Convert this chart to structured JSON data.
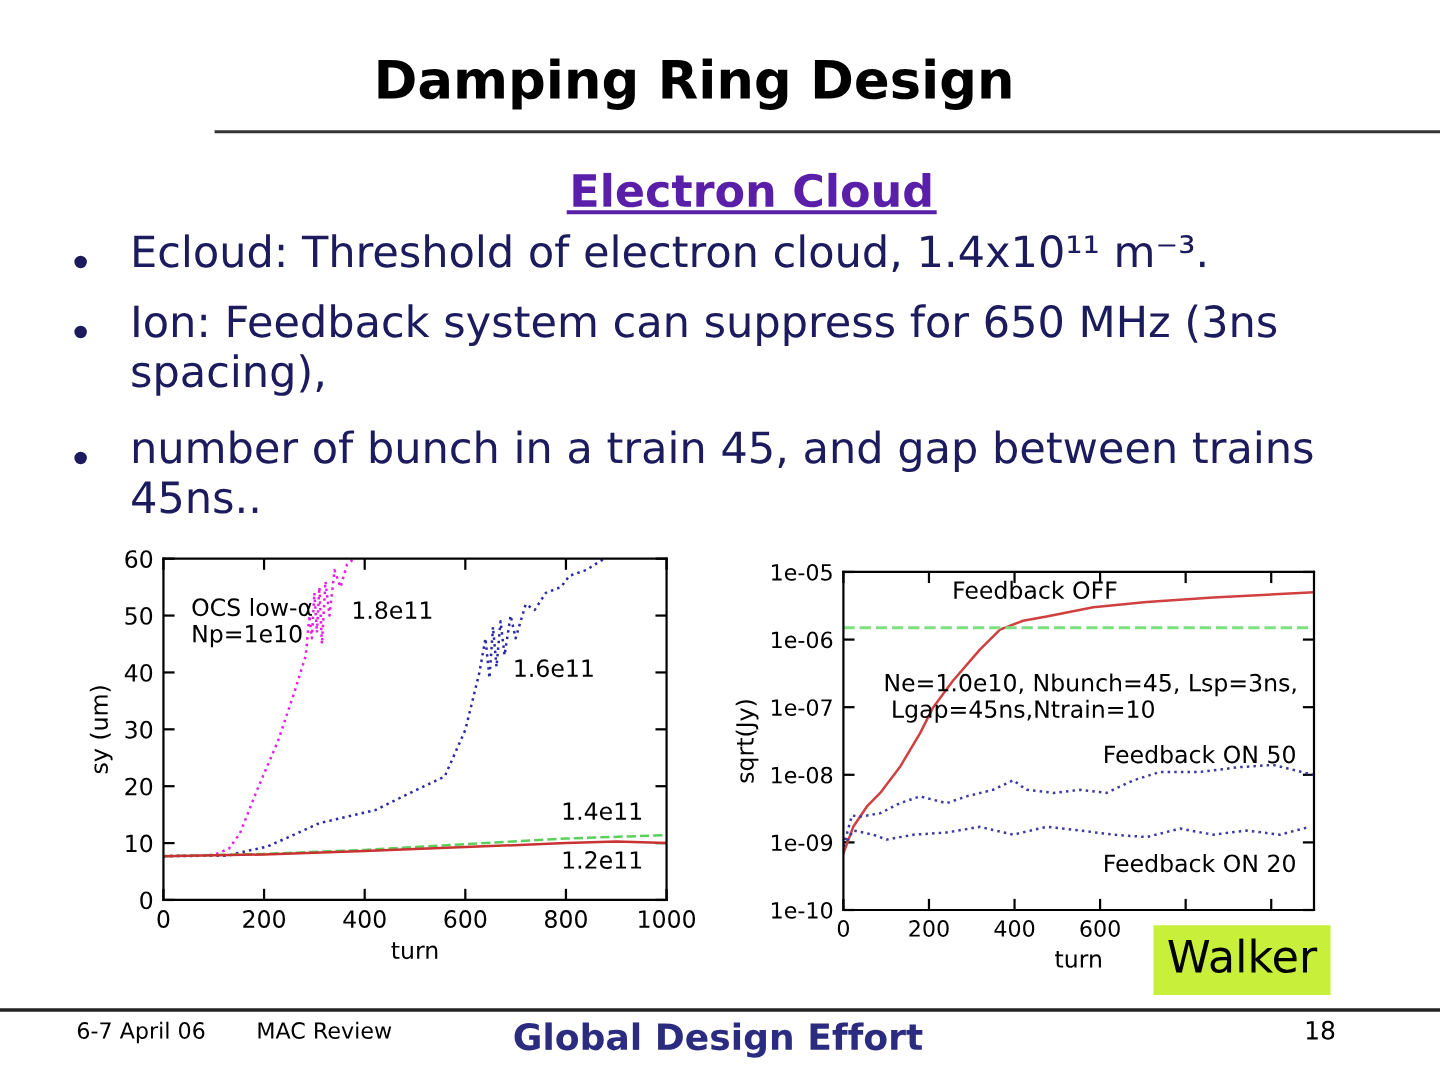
{
  "chart_data": [
    {
      "type": "other",
      "title": "Damping Ring Design",
      "subtitle": "Electron Cloud",
      "annotations": [
        "Ecloud: Threshold of electron cloud, 1.4x10¹¹ m⁻³.",
        "Ion: Feedback system can suppress for 650 MHz (3ns spacing),",
        "number of bunch in a train 45, and gap between trains 45ns..",
        "6-7 April 06",
        "MAC Review",
        "Global Design Effort",
        "18",
        "Walker"
      ]
    },
    {
      "type": "line",
      "xlabel": "turn",
      "ylabel": "sy (um)",
      "xlim": [
        0,
        1000
      ],
      "ylim": [
        0,
        60
      ],
      "xticks": [
        0,
        200,
        400,
        600,
        800,
        1000
      ],
      "yticks": [
        0,
        10,
        20,
        30,
        40,
        50,
        60
      ],
      "annotations": [
        "OCS low-α\nNp=1e10"
      ],
      "series": [
        {
          "name": "1.8e11",
          "color": "#e81ee8",
          "line_style": "dotted",
          "x": [
            0,
            100,
            130,
            152,
            186,
            228,
            262,
            283,
            290,
            295,
            300,
            305,
            310,
            315,
            322,
            330,
            340,
            352,
            365,
            379
          ],
          "values": [
            7.7,
            7.9,
            9,
            11.7,
            19.3,
            28,
            37,
            43,
            50,
            46,
            54,
            47,
            55,
            45,
            56,
            50,
            58,
            55,
            59,
            60
          ]
        },
        {
          "name": "1.6e11",
          "color": "#2a2aa8",
          "line_style": "dotted",
          "x": [
            0,
            130,
            145,
            207,
            260,
            310,
            421,
            490,
            559,
            600,
            628,
            640,
            648,
            655,
            662,
            670,
            678,
            690,
            700,
            720,
            738,
            760,
            790,
            807,
            840,
            876
          ],
          "values": [
            7.7,
            7.8,
            8.2,
            9.4,
            11.5,
            13.5,
            15.8,
            18.8,
            21.7,
            29.9,
            40,
            46,
            39,
            48,
            41,
            49,
            43,
            50,
            46,
            52,
            51,
            54,
            55,
            57,
            58,
            60
          ]
        },
        {
          "name": "1.4e11",
          "color": "#5ccf5c",
          "line_style": "dashed",
          "x": [
            0,
            200,
            400,
            600,
            800,
            1000
          ],
          "values": [
            7.7,
            8.1,
            8.8,
            9.8,
            10.8,
            11.4
          ]
        },
        {
          "name": "1.2e11",
          "color": "#c83232",
          "line_style": "solid",
          "x": [
            0,
            200,
            400,
            600,
            800,
            900,
            1000
          ],
          "values": [
            7.7,
            8.0,
            8.6,
            9.3,
            10.0,
            10.3,
            10.0
          ]
        }
      ]
    },
    {
      "type": "line",
      "xlabel": "turn",
      "ylabel": "sqrt(Jy)",
      "log": "y",
      "xlim": [
        0,
        1100
      ],
      "ylim": [
        1e-10,
        1e-05
      ],
      "xticks": [
        0,
        200,
        400,
        600,
        {
          "value": 800,
          "label": null
        },
        {
          "value": 1000,
          "label": null
        }
      ],
      "yticks": [
        {
          "value": 1e-10,
          "label": "1e-10"
        },
        {
          "value": 1e-09,
          "label": "1e-09"
        },
        {
          "value": 1e-08,
          "label": "1e-08"
        },
        {
          "value": 1e-07,
          "label": "1e-07"
        },
        {
          "value": 1e-06,
          "label": "1e-06"
        },
        {
          "value": 1e-05,
          "label": "1e-05"
        }
      ],
      "ref_lines": [
        {
          "axis": "y",
          "value": 1.5e-06,
          "color": "#7ee07e",
          "line_style": "dashed"
        }
      ],
      "annotations": [
        "Ne=1.0e10, Nbunch=45, Lsp=3ns,\n Lgap=45ns,Ntrain=10"
      ],
      "series": [
        {
          "name": "Feedback OFF",
          "color": "#d04040",
          "line_style": "solid",
          "x": [
            0,
            23,
            55,
            86,
            132,
            179,
            210,
            257,
            319,
            366,
            420,
            475,
            584,
            709,
            864,
            1098
          ],
          "values": [
            6.9e-10,
            1.7e-09,
            3.4e-09,
            5.4e-09,
            1.3e-08,
            4.1e-08,
            1e-07,
            2.5e-07,
            7.1e-07,
            1.4e-06,
            1.9e-06,
            2.2e-06,
            3e-06,
            3.6e-06,
            4.2e-06,
            5e-06
          ]
        },
        {
          "name": "Feedback ON 50",
          "color": "#3a3aa0",
          "line_style": "dotted",
          "x": [
            0,
            20,
            39,
            86,
            132,
            179,
            241,
            288,
            350,
            397,
            428,
            491,
            553,
            615,
            678,
            740,
            833,
            927,
            1005,
            1098
          ],
          "values": [
            8.7e-10,
            2.5e-09,
            2.4e-09,
            2.7e-09,
            3.8e-09,
            4.8e-09,
            3.8e-09,
            4.8e-09,
            6e-09,
            8.3e-09,
            6e-09,
            5.4e-09,
            6e-09,
            5.4e-09,
            8.3e-09,
            1.1e-08,
            1.1e-08,
            1.3e-08,
            1.4e-08,
            1e-08
          ]
        },
        {
          "name": "Feedback ON 20",
          "color": "#3a3aa0",
          "line_style": "dotted",
          "x": [
            0,
            23,
            70,
            101,
            164,
            241,
            319,
            397,
            475,
            553,
            631,
            709,
            787,
            864,
            942,
            1020,
            1090
          ],
          "values": [
            8.7e-10,
            1.5e-09,
            1.3e-09,
            1.1e-09,
            1.3e-09,
            1.4e-09,
            1.7e-09,
            1.3e-09,
            1.7e-09,
            1.5e-09,
            1.3e-09,
            1.2e-09,
            1.6e-09,
            1.3e-09,
            1.5e-09,
            1.3e-09,
            1.7e-09
          ]
        }
      ]
    }
  ]
}
